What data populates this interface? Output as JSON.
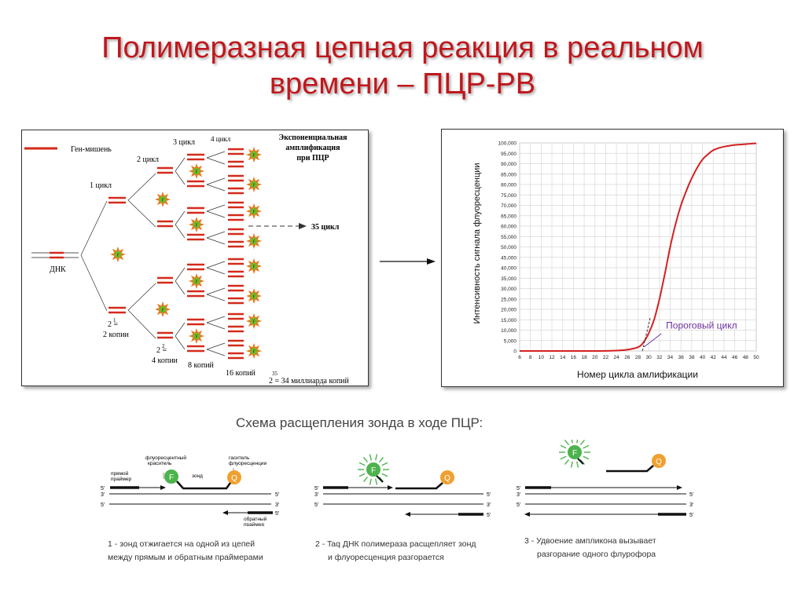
{
  "slide": {
    "title_line1": "Полимеразная цепная реакция в реальном",
    "title_line2": "времени – ПЦР-РВ",
    "colors": {
      "title": "#c0171c",
      "strand": "#d42a1a",
      "curve": "#d42020",
      "probe_f": "#4db34d",
      "probe_q": "#f0a030",
      "threshold_label": "#7030a0"
    }
  },
  "amplification": {
    "legend": "Ген-мишень",
    "dna_label": "ДНК",
    "cycle1": "1 цикл",
    "cycle2": "2 цикл",
    "cycle3": "3 цикл",
    "cycle4": "4 цикл",
    "heading_line1": "Экспоненциальная",
    "heading_line2": "амплификация",
    "heading_line3": "при ПЦР",
    "arrow_label": "35 цикл",
    "copies2_exp": "1",
    "copies2_line1": "2 =",
    "copies2_line2": "2 копии",
    "copies4_exp": "2",
    "copies4_line1": "2 =",
    "copies4_line2": "4 копии",
    "copies8": "8 копий",
    "copies16": "16 копий",
    "copies35_exp": "35",
    "copies35": "2 = 34 миллиарда копий",
    "probe_letter": "F"
  },
  "chart_data": {
    "type": "line",
    "title": "",
    "xlabel": "Номер цикла амлификации",
    "ylabel": "Интенсивность сигнала флуоресценции",
    "xlim": [
      6,
      50
    ],
    "ylim": [
      0,
      100000
    ],
    "x_ticks": [
      "6",
      "8",
      "10",
      "12",
      "14",
      "16",
      "18",
      "20",
      "22",
      "24",
      "26",
      "28",
      "30",
      "32",
      "34",
      "36",
      "38",
      "40",
      "42",
      "44",
      "46",
      "48",
      "50"
    ],
    "y_ticks": [
      "0",
      "5,000",
      "10,000",
      "15,000",
      "20,000",
      "25,000",
      "30,000",
      "35,000",
      "40,000",
      "45,000",
      "50,000",
      "55,000",
      "60,000",
      "65,000",
      "70,000",
      "75,000",
      "80,000",
      "85,000",
      "90,000",
      "95,000",
      "100,000"
    ],
    "grid": true,
    "series": [
      {
        "name": "Fluorescence",
        "x": [
          6,
          20,
          24,
          26,
          28,
          29,
          30,
          31,
          32,
          33,
          34,
          35,
          36,
          37,
          38,
          39,
          40,
          41,
          42,
          43,
          44,
          46,
          48,
          50
        ],
        "y": [
          0,
          0,
          200,
          600,
          1800,
          4000,
          8500,
          15000,
          25000,
          37000,
          50000,
          61000,
          70000,
          77000,
          83000,
          88000,
          92000,
          94500,
          96500,
          97500,
          98200,
          99000,
          99400,
          99800
        ]
      }
    ],
    "annotation": {
      "label": "Пороговый цикл",
      "x": 30,
      "y": 10000
    }
  },
  "probe_scheme": {
    "title": "Схема расщепления зонда в ходе ПЦР:",
    "step1": {
      "label_dye": "флуоресцентный краситель",
      "label_quencher": "гаситель флуоресценции",
      "label_forward": "прямой праймер",
      "label_probe": "зонд",
      "label_reverse": "обратный праймер",
      "caption_line1": "1 - зонд отжигается на одной из цепей",
      "caption_line2": "между прямым и обратным праймерами"
    },
    "step2": {
      "caption_line1": "2 - Taq ДНК полимераза расщепляет зонд",
      "caption_line2": "и флуоресценция разгорается"
    },
    "step3": {
      "caption_line1": "3 - Удвоение ампликона вызывает",
      "caption_line2": "разгорание одного флурофора"
    },
    "f": "F",
    "q": "Q",
    "end5": "5'",
    "end3": "3'"
  }
}
